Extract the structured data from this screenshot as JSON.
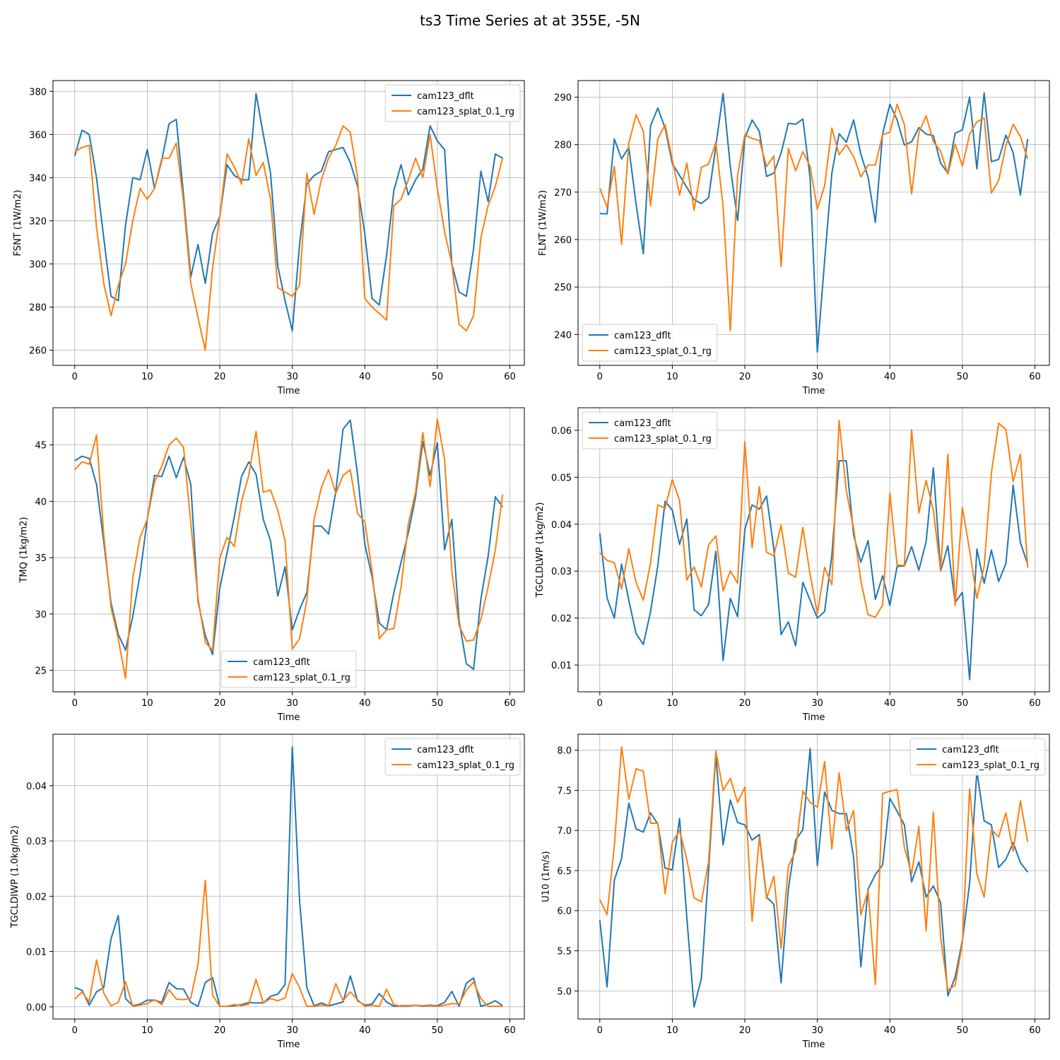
{
  "figure": {
    "title": "ts3 Time Series at at 355E, -5N"
  },
  "chart_data": [
    {
      "type": "line",
      "xlabel": "Time",
      "ylabel": "FSNT (1W/m2)",
      "xlim": [
        -3,
        62
      ],
      "ylim": [
        253,
        385
      ],
      "xticks": [
        0,
        10,
        20,
        30,
        40,
        50,
        60
      ],
      "yticks": [
        260,
        280,
        300,
        320,
        340,
        360,
        380
      ],
      "grid": true,
      "legend": "top-right",
      "series": [
        {
          "name": "cam123_dflt",
          "color": "#1f77b4",
          "values": [
            350,
            362,
            360,
            340,
            312,
            285,
            283,
            318,
            340,
            339,
            353,
            335,
            348,
            365,
            367,
            332,
            294,
            309,
            291,
            314,
            322,
            346,
            341,
            339,
            339,
            379,
            360,
            342,
            299,
            283,
            269,
            309,
            337,
            341,
            343,
            352,
            353,
            354,
            347,
            336,
            314,
            284,
            281,
            304,
            334,
            346,
            332,
            339,
            344,
            364,
            357,
            353,
            300,
            287,
            285,
            307,
            343,
            329,
            351,
            349
          ]
        },
        {
          "name": "cam123_splat_0.1_rg",
          "color": "#ff7f0e",
          "values": [
            352,
            354,
            355,
            317,
            291,
            276,
            290,
            300,
            320,
            335,
            330,
            335,
            349,
            349,
            356,
            329,
            291,
            275,
            260,
            298,
            322,
            351,
            345,
            337,
            358,
            341,
            347,
            330,
            289,
            287,
            285,
            290,
            342,
            323,
            339,
            349,
            355,
            364,
            361,
            340,
            284,
            280,
            277,
            274,
            327,
            330,
            339,
            349,
            340,
            360,
            335,
            315,
            300,
            272,
            269,
            276,
            312,
            327,
            336,
            349
          ]
        }
      ]
    },
    {
      "type": "line",
      "xlabel": "Time",
      "ylabel": "FLNT (1W/m2)",
      "xlim": [
        -3,
        62
      ],
      "ylim": [
        233.5,
        293.5
      ],
      "xticks": [
        0,
        10,
        20,
        30,
        40,
        50,
        60
      ],
      "yticks": [
        240,
        250,
        260,
        270,
        280,
        290
      ],
      "grid": true,
      "legend": "bottom-left",
      "series": [
        {
          "name": "cam123_dflt",
          "color": "#1f77b4",
          "values": [
            265.5,
            265.4,
            281.2,
            277,
            279.4,
            267.5,
            257,
            284,
            287.7,
            283.5,
            276,
            273.5,
            271,
            268.4,
            267.6,
            268.8,
            279.7,
            290.8,
            275.3,
            264,
            281.4,
            285.2,
            282.8,
            273.3,
            274,
            278.2,
            284.5,
            284.3,
            285.4,
            273,
            236.3,
            255.5,
            274,
            282.3,
            280.5,
            285.2,
            278,
            273.1,
            263.6,
            282.3,
            288.5,
            285.2,
            279.9,
            280.6,
            283.6,
            282.2,
            281.9,
            276.1,
            274,
            282.4,
            283.1,
            290,
            274.9,
            290.9,
            276.4,
            276.9,
            282,
            278.3,
            269.4,
            281.2
          ]
        },
        {
          "name": "cam123_splat_0.1_rg",
          "color": "#ff7f0e",
          "values": [
            270.8,
            266.8,
            275.4,
            259,
            280.3,
            286.3,
            282.8,
            267.1,
            281.2,
            284.2,
            276.8,
            269.4,
            276.1,
            266.2,
            275.2,
            275.9,
            280.5,
            267.1,
            240.8,
            273.5,
            282.1,
            281.3,
            280.9,
            275.4,
            277.6,
            254.3,
            279.2,
            274.5,
            278.5,
            275.4,
            266.4,
            271.3,
            283.5,
            277.9,
            280,
            277.5,
            273.2,
            275.7,
            275.7,
            282.1,
            282.6,
            288.5,
            284.2,
            269.6,
            282.5,
            286.1,
            280.6,
            278.6,
            273.8,
            280.1,
            275.5,
            282.2,
            284.8,
            285.6,
            269.8,
            272.4,
            279.8,
            284.3,
            281.7,
            277
          ]
        }
      ]
    },
    {
      "type": "line",
      "xlabel": "Time",
      "ylabel": "TMQ (1kg/m2)",
      "xlim": [
        -3,
        62
      ],
      "ylim": [
        23.1,
        48.3
      ],
      "xticks": [
        0,
        10,
        20,
        30,
        40,
        50,
        60
      ],
      "yticks": [
        25,
        30,
        35,
        40,
        45
      ],
      "grid": true,
      "legend": "bottom-center",
      "series": [
        {
          "name": "cam123_dflt",
          "color": "#1f77b4",
          "values": [
            43.6,
            44,
            43.8,
            41.5,
            36.4,
            31,
            28.2,
            26.8,
            29.8,
            33.5,
            38.4,
            42.3,
            42.2,
            44,
            42.1,
            43.9,
            41.5,
            31.1,
            28.1,
            26.4,
            32.3,
            35.4,
            38.6,
            42.2,
            43.5,
            42.4,
            38.4,
            36.5,
            31.6,
            34.2,
            28.6,
            30.4,
            31.9,
            37.8,
            37.8,
            37.1,
            40.9,
            46.4,
            47.2,
            42.4,
            36.2,
            33.3,
            29.2,
            28.6,
            31.9,
            34.6,
            37.2,
            40.4,
            45.3,
            42.3,
            45.2,
            35.7,
            38.4,
            29.4,
            25.6,
            25.1,
            31.3,
            35.1,
            40.4,
            39.5
          ]
        },
        {
          "name": "cam123_splat_0.1_rg",
          "color": "#ff7f0e",
          "values": [
            42.8,
            43.5,
            43.3,
            45.9,
            37,
            30.6,
            27.8,
            24.3,
            33.2,
            36.8,
            38.4,
            41.7,
            43.1,
            45,
            45.6,
            44.8,
            38.1,
            31.4,
            27.5,
            26.8,
            35,
            36.8,
            36,
            40,
            42.3,
            46.2,
            40.8,
            41,
            39.2,
            36.5,
            26.9,
            27.8,
            31.2,
            38.4,
            41.2,
            42.8,
            40.7,
            42.3,
            42.8,
            38.9,
            38.2,
            33.8,
            27.8,
            28.6,
            28.7,
            32.4,
            38,
            40.8,
            46.1,
            41.3,
            47.3,
            43.7,
            33.8,
            29,
            27.6,
            27.7,
            29.5,
            32.4,
            35.7,
            40.6
          ]
        }
      ]
    },
    {
      "type": "line",
      "xlabel": "Time",
      "ylabel": "TGCLDLWP (1kg/m2)",
      "xlim": [
        -3,
        62
      ],
      "ylim": [
        0.0043,
        0.0648
      ],
      "xticks": [
        0,
        10,
        20,
        30,
        40,
        50,
        60
      ],
      "yticks": [
        0.01,
        0.02,
        0.03,
        0.04,
        0.05,
        0.06
      ],
      "ytickLabels": [
        "0.01",
        "0.02",
        "0.03",
        "0.04",
        "0.05",
        "0.06"
      ],
      "grid": true,
      "legend": "top-left",
      "series": [
        {
          "name": "cam123_dflt",
          "color": "#1f77b4",
          "values": [
            0.0381,
            0.0243,
            0.02,
            0.0315,
            0.0238,
            0.0167,
            0.0144,
            0.0214,
            0.0312,
            0.0449,
            0.043,
            0.0357,
            0.0411,
            0.0218,
            0.0205,
            0.0229,
            0.0342,
            0.011,
            0.0242,
            0.0203,
            0.0389,
            0.0441,
            0.0432,
            0.046,
            0.0347,
            0.0165,
            0.0192,
            0.0141,
            0.0276,
            0.0238,
            0.02,
            0.0214,
            0.0334,
            0.0535,
            0.0535,
            0.0377,
            0.0319,
            0.0365,
            0.024,
            0.029,
            0.0227,
            0.031,
            0.0311,
            0.0352,
            0.0302,
            0.0363,
            0.052,
            0.03,
            0.0354,
            0.0233,
            0.0255,
            0.0069,
            0.0347,
            0.0274,
            0.0345,
            0.0278,
            0.0316,
            0.0483,
            0.0361,
            0.0315
          ]
        },
        {
          "name": "cam123_splat_0.1_rg",
          "color": "#ff7f0e",
          "values": [
            0.0339,
            0.0323,
            0.0318,
            0.0262,
            0.0348,
            0.0276,
            0.0238,
            0.0318,
            0.0441,
            0.0434,
            0.0495,
            0.045,
            0.0281,
            0.0309,
            0.0266,
            0.0356,
            0.0375,
            0.0258,
            0.0301,
            0.0274,
            0.0576,
            0.035,
            0.048,
            0.034,
            0.0333,
            0.0398,
            0.0296,
            0.0287,
            0.0393,
            0.0293,
            0.0209,
            0.0308,
            0.0271,
            0.0621,
            0.047,
            0.0391,
            0.0279,
            0.0207,
            0.0202,
            0.0228,
            0.0466,
            0.0313,
            0.0312,
            0.0601,
            0.0424,
            0.0493,
            0.0429,
            0.0301,
            0.0549,
            0.0227,
            0.0436,
            0.0344,
            0.0242,
            0.031,
            0.0509,
            0.0615,
            0.0602,
            0.0491,
            0.0549,
            0.0307
          ]
        }
      ]
    },
    {
      "type": "line",
      "xlabel": "Time",
      "ylabel": "TGCLDIWP (1.0kg/m2)",
      "xlim": [
        -3,
        62
      ],
      "ylim": [
        -0.0022,
        0.0493
      ],
      "xticks": [
        0,
        10,
        20,
        30,
        40,
        50,
        60
      ],
      "yticks": [
        0,
        0.01,
        0.02,
        0.03,
        0.04
      ],
      "ytickLabels": [
        "0.00",
        "0.01",
        "0.02",
        "0.03",
        "0.04"
      ],
      "grid": true,
      "legend": "top-right",
      "series": [
        {
          "name": "cam123_dflt",
          "color": "#1f77b4",
          "values": [
            0.0035,
            0.003,
            0.0003,
            0.0027,
            0.0035,
            0.0123,
            0.0165,
            0.0015,
            0.0002,
            0.0005,
            0.0012,
            0.0012,
            0.0008,
            0.0044,
            0.0033,
            0.0032,
            0.0008,
            0.0001,
            0.0044,
            0.0053,
            0.0001,
            0.0001,
            0.0002,
            0.0004,
            0.0008,
            0.0007,
            0.0007,
            0.0019,
            0.0023,
            0.004,
            0.047,
            0.0193,
            0.0035,
            0.0002,
            0.0007,
            0.0002,
            0.0005,
            0.0009,
            0.0056,
            0.0011,
            0.0003,
            0.0005,
            0.0024,
            0.0009,
            0.0001,
            0.0002,
            0.0002,
            0.0003,
            0.0002,
            0.0003,
            0.0002,
            0.0008,
            0.0028,
            0.0001,
            0.0043,
            0.0052,
            0.0001,
            0.0005,
            0.0011,
            0.0002
          ]
        },
        {
          "name": "cam123_splat_0.1_rg",
          "color": "#ff7f0e",
          "values": [
            0.0014,
            0.0027,
            0.0009,
            0.0085,
            0.0025,
            0.0002,
            0.0008,
            0.0045,
            0.0001,
            0.0003,
            0.0006,
            0.0013,
            0.0004,
            0.0031,
            0.0014,
            0.0013,
            0.0016,
            0.0077,
            0.0229,
            0.0021,
            0.0001,
            0.0001,
            0.0004,
            0.0002,
            0.0005,
            0.005,
            0.0007,
            0.0015,
            0.0011,
            0.0016,
            0.006,
            0.0035,
            0.0001,
            0.0001,
            0.0003,
            0.0002,
            0.0042,
            0.0011,
            0.0027,
            0.0013,
            0.0001,
            0.0003,
            0.0001,
            0.0032,
            0.0004,
            0.0001,
            0.0001,
            0.0003,
            0.0001,
            0.0002,
            0.0001,
            0.0003,
            0.0006,
            0.0005,
            0.003,
            0.0045,
            0.0015,
            0.0001,
            0.0001,
            0.0001
          ]
        }
      ]
    },
    {
      "type": "line",
      "xlabel": "Time",
      "ylabel": "U10 (1m/s)",
      "xlim": [
        -3,
        62
      ],
      "ylim": [
        4.65,
        8.2
      ],
      "xticks": [
        0,
        10,
        20,
        30,
        40,
        50,
        60
      ],
      "yticks": [
        5,
        5.5,
        6,
        6.5,
        7,
        7.5,
        8
      ],
      "ytickLabels": [
        "5.0",
        "5.5",
        "6.0",
        "6.5",
        "7.0",
        "7.5",
        "8.0"
      ],
      "grid": true,
      "legend": "top-right",
      "series": [
        {
          "name": "cam123_dflt",
          "color": "#1f77b4",
          "values": [
            5.88,
            5.05,
            6.38,
            6.65,
            7.34,
            7.02,
            6.98,
            7.22,
            7.08,
            6.53,
            6.51,
            7.15,
            5.91,
            4.8,
            5.15,
            6.5,
            7.94,
            6.82,
            7.38,
            7.1,
            7.07,
            6.88,
            6.95,
            6.17,
            6.08,
            5.1,
            6.27,
            6.88,
            7.01,
            8.02,
            6.56,
            7.48,
            7.25,
            7.21,
            7.21,
            6.67,
            5.3,
            6.27,
            6.45,
            6.57,
            7.4,
            7.24,
            7.07,
            6.36,
            6.61,
            6.17,
            6.31,
            6.1,
            4.94,
            5.17,
            5.63,
            6.34,
            7.74,
            7.12,
            7.07,
            6.54,
            6.64,
            6.85,
            6.6,
            6.48
          ]
        },
        {
          "name": "cam123_splat_0.1_rg",
          "color": "#ff7f0e",
          "values": [
            6.14,
            5.95,
            6.8,
            8.04,
            7.39,
            7.77,
            7.74,
            7.09,
            7.09,
            6.21,
            6.85,
            7,
            6.64,
            6.16,
            6.11,
            6.61,
            7.99,
            7.5,
            7.65,
            7.35,
            7.54,
            5.87,
            6.92,
            6.15,
            6.43,
            5.53,
            6.55,
            6.75,
            7.49,
            7.35,
            7.29,
            7.86,
            6.77,
            7.72,
            7,
            7.25,
            5.95,
            6.25,
            5.08,
            7.46,
            7.49,
            7.51,
            6.79,
            6.46,
            7.05,
            5.75,
            7.23,
            5.67,
            5.01,
            5.07,
            5.6,
            7.52,
            6.46,
            6.17,
            7.01,
            6.92,
            7.22,
            6.74,
            7.37,
            6.86
          ]
        }
      ]
    }
  ]
}
